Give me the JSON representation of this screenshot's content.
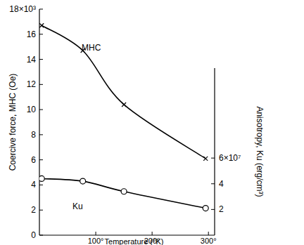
{
  "chart_data": {
    "type": "line",
    "x_label": "Temperature (°K)",
    "y_label": "Coercive force, MHC (Oe)",
    "y2_label": "Anisotropy, Ku (erg/cm³)",
    "x": [
      4,
      77,
      150,
      295
    ],
    "xlim": [
      0,
      311
    ],
    "xticks": [
      {
        "value": 100,
        "label": "100°"
      },
      {
        "value": 200,
        "label": "200°"
      },
      {
        "value": 300,
        "label": "300°"
      }
    ],
    "ylim": [
      0,
      18
    ],
    "yticks": [
      0,
      2,
      4,
      6,
      8,
      10,
      12,
      14,
      16,
      {
        "value": 18,
        "label": "18×10³"
      }
    ],
    "y2lim": [
      0,
      13
    ],
    "y2ticks": [
      2,
      4,
      {
        "value": 6,
        "label": "6×10⁷"
      }
    ],
    "series": [
      {
        "name": "MHC",
        "color": "#000000",
        "marker": "x",
        "values": [
          16.7,
          14.7,
          10.4,
          6.1
        ]
      },
      {
        "name": "Ku",
        "color": "#000000",
        "marker": "circle",
        "axis": "y2",
        "values": [
          4.4,
          4.2,
          3.4,
          2.1
        ]
      }
    ]
  }
}
